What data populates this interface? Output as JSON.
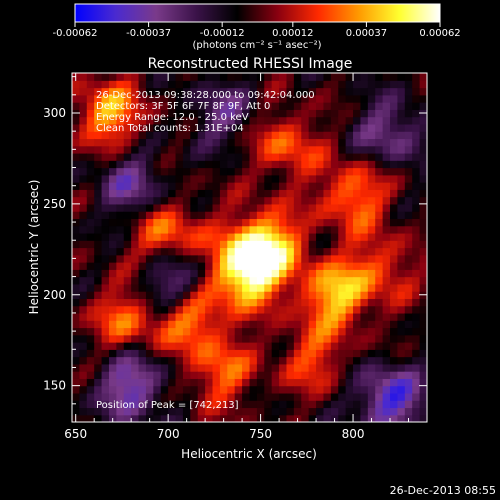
{
  "colors": {
    "background": "#000000",
    "text": "#ffffff",
    "colorbar_stops": [
      "#0000ff",
      "#4a2ad0",
      "#7a3a8a",
      "#3a1248",
      "#000000",
      "#8a0010",
      "#ff2a00",
      "#ff9a00",
      "#ffff30",
      "#ffffff"
    ]
  },
  "colorbar": {
    "ticks": [
      "-0.00062",
      "-0.00037",
      "-0.00012",
      "0.00012",
      "0.00037",
      "0.00062"
    ],
    "tick_values": [
      -0.00062,
      -0.00037,
      -0.00012,
      0.00012,
      0.00037,
      0.00062
    ],
    "range": [
      -0.00062,
      0.00062
    ],
    "unit_label": "(photons cm⁻² s⁻¹ asec⁻²)"
  },
  "chart_data": {
    "type": "heatmap",
    "title": "Reconstructed RHESSI Image",
    "xlabel": "Heliocentric X (arcsec)",
    "ylabel": "Heliocentric Y (arcsec)",
    "xlim": [
      648,
      840
    ],
    "ylim": [
      130,
      322
    ],
    "xticks": [
      650,
      700,
      750,
      800
    ],
    "yticks": [
      150,
      200,
      250,
      300
    ],
    "annotations": [
      "26-Dec-2013 09:38:28.000 to 09:42:04.000",
      "Detectors: 3F 5F 6F 7F 8F 9F, Att 0",
      "Energy Range: 12.0 - 25.0 keV",
      "Clean    Total counts: 1.31E+04"
    ],
    "peak_label": "Position of Peak = [742,213]",
    "peak": [
      742,
      213
    ],
    "bright_sources": [
      {
        "x": 742,
        "y": 213,
        "value": 0.00062
      },
      {
        "x": 753,
        "y": 228,
        "value": 0.0005
      },
      {
        "x": 712,
        "y": 190,
        "value": 0.00045
      },
      {
        "x": 790,
        "y": 200,
        "value": 0.00045
      },
      {
        "x": 668,
        "y": 300,
        "value": 0.0004
      },
      {
        "x": 700,
        "y": 233,
        "value": 0.00035
      },
      {
        "x": 800,
        "y": 255,
        "value": 0.00035
      },
      {
        "x": 677,
        "y": 187,
        "value": 0.0003
      },
      {
        "x": 763,
        "y": 283,
        "value": 0.0003
      },
      {
        "x": 728,
        "y": 158,
        "value": 0.0003
      },
      {
        "x": 815,
        "y": 215,
        "value": 0.00025
      },
      {
        "x": 778,
        "y": 165,
        "value": 0.00025
      }
    ],
    "dark_sources": [
      {
        "x": 705,
        "y": 205,
        "value": -0.00045
      },
      {
        "x": 680,
        "y": 150,
        "value": -0.0004
      },
      {
        "x": 820,
        "y": 143,
        "value": -0.00045
      },
      {
        "x": 680,
        "y": 260,
        "value": -0.0003
      },
      {
        "x": 820,
        "y": 290,
        "value": -0.0003
      },
      {
        "x": 730,
        "y": 300,
        "value": -0.00025
      }
    ]
  },
  "footer": {
    "timestamp": "26-Dec-2013 08:55"
  }
}
